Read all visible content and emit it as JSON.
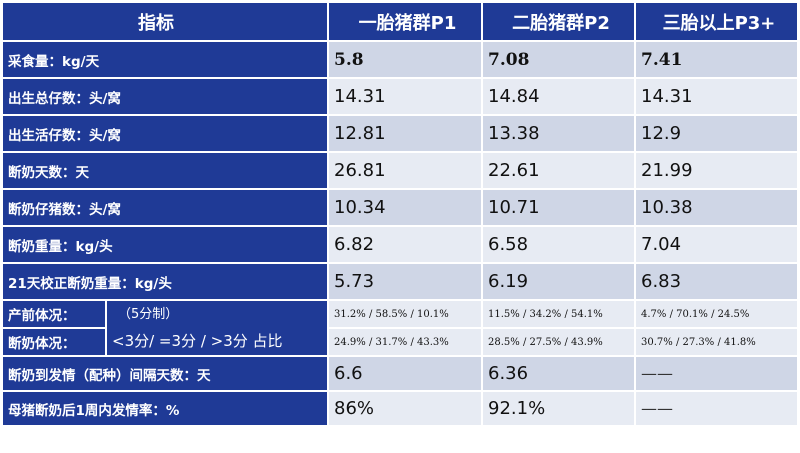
{
  "header": {
    "metric": "指标",
    "p1": "一胎猪群P1",
    "p2": "二胎猪群P2",
    "p3": "三胎以上P3+"
  },
  "rows": [
    {
      "label": "采食量：kg/天",
      "p1": "5.8",
      "p2": "7.08",
      "p3": "7.41"
    },
    {
      "label": "出生总仔数：头/窝",
      "p1": "14.31",
      "p2": "14.84",
      "p3": "14.31"
    },
    {
      "label": "出生活仔数：头/窝",
      "p1": "12.81",
      "p2": "13.38",
      "p3": "12.9"
    },
    {
      "label": "断奶天数：天",
      "p1": "26.81",
      "p2": "22.61",
      "p3": "21.99"
    },
    {
      "label": "断奶仔猪数：头/窝",
      "p1": "10.34",
      "p2": "10.71",
      "p3": "10.38"
    },
    {
      "label": "断奶重量：kg/头",
      "p1": "6.82",
      "p2": "6.58",
      "p3": "7.04"
    },
    {
      "label": "21天校正断奶重量：kg/头",
      "p1": "5.73",
      "p2": "6.19",
      "p3": "6.83"
    }
  ],
  "condition": {
    "note_line1": "（5分制）",
    "note_line2": "<3分/ =3分 / >3分 占比",
    "prepartum": {
      "label": "产前体况：",
      "p1": "31.2% / 58.5% / 10.1%",
      "p2": "11.5% / 34.2% / 54.1%",
      "p3": "4.7% / 70.1% / 24.5%"
    },
    "weaning": {
      "label": "断奶体况：",
      "p1": "24.9% / 31.7% / 43.3%",
      "p2": "28.5% / 27.5% / 43.9%",
      "p3": "30.7% / 27.3% / 41.8%"
    }
  },
  "tail_rows": [
    {
      "label": "断奶到发情（配种）间隔天数：天",
      "p1": "6.6",
      "p2": "6.36",
      "p3": "——"
    },
    {
      "label": "母猪断奶后1周内发情率：%",
      "p1": "86%",
      "p2": "92.1%",
      "p3": "——"
    }
  ]
}
